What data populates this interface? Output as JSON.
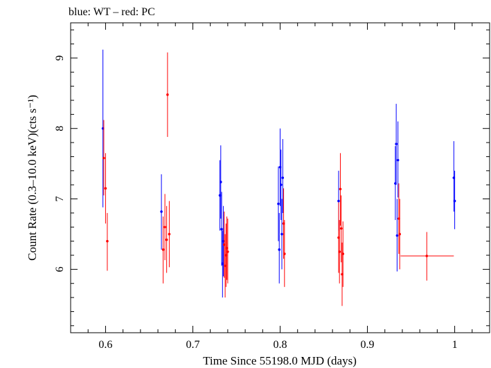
{
  "title": "blue: WT – red: PC",
  "chart_data": {
    "type": "scatter",
    "title": "blue: WT – red: PC",
    "xlabel": "Time Since 55198.0 MJD (days)",
    "ylabel": "Count Rate (0.3–10.0 keV)(cts s⁻¹)",
    "xlim": [
      0.56,
      1.04
    ],
    "ylim": [
      5.1,
      9.5
    ],
    "xticks": [
      0.6,
      0.7,
      0.8,
      0.9,
      1.0
    ],
    "xtick_labels": [
      "0.6",
      "0.7",
      "0.8",
      "0.9",
      "1"
    ],
    "yticks": [
      6,
      7,
      8,
      9
    ],
    "ytick_labels": [
      "6",
      "7",
      "8",
      "9"
    ],
    "grid": false,
    "series": [
      {
        "name": "WT",
        "color": "#0000ff",
        "points": [
          {
            "x": 0.597,
            "y": 8.0,
            "ylo": 6.88,
            "yhi": 9.12
          },
          {
            "x": 0.664,
            "y": 6.82,
            "ylo": 6.28,
            "yhi": 7.35
          },
          {
            "x": 0.731,
            "y": 7.05,
            "ylo": 6.55,
            "yhi": 7.55
          },
          {
            "x": 0.732,
            "y": 7.24,
            "ylo": 6.72,
            "yhi": 7.76
          },
          {
            "x": 0.733,
            "y": 6.57,
            "ylo": 6.05,
            "yhi": 7.1
          },
          {
            "x": 0.734,
            "y": 6.08,
            "ylo": 5.6,
            "yhi": 6.55
          },
          {
            "x": 0.735,
            "y": 6.4,
            "ylo": 5.9,
            "yhi": 6.9
          },
          {
            "x": 0.798,
            "y": 6.93,
            "ylo": 6.4,
            "yhi": 7.46
          },
          {
            "x": 0.799,
            "y": 6.28,
            "ylo": 5.8,
            "yhi": 6.8
          },
          {
            "x": 0.8,
            "y": 7.45,
            "ylo": 6.9,
            "yhi": 8.0
          },
          {
            "x": 0.801,
            "y": 7.2,
            "ylo": 6.7,
            "yhi": 7.7
          },
          {
            "x": 0.802,
            "y": 6.5,
            "ylo": 6.0,
            "yhi": 7.0
          },
          {
            "x": 0.803,
            "y": 7.3,
            "ylo": 6.8,
            "yhi": 7.85
          },
          {
            "x": 0.867,
            "y": 6.97,
            "ylo": 6.55,
            "yhi": 7.4
          },
          {
            "x": 0.932,
            "y": 7.22,
            "ylo": 6.7,
            "yhi": 7.75
          },
          {
            "x": 0.933,
            "y": 7.78,
            "ylo": 7.2,
            "yhi": 8.35
          },
          {
            "x": 0.934,
            "y": 6.48,
            "ylo": 5.97,
            "yhi": 7.0
          },
          {
            "x": 0.935,
            "y": 7.55,
            "ylo": 7.02,
            "yhi": 8.1
          },
          {
            "x": 0.999,
            "y": 7.3,
            "ylo": 6.82,
            "yhi": 7.82
          },
          {
            "x": 1.0,
            "y": 6.97,
            "ylo": 6.57,
            "yhi": 7.4
          }
        ]
      },
      {
        "name": "PC",
        "color": "#ff0000",
        "points": [
          {
            "x": 0.598,
            "y": 7.58,
            "ylo": 7.05,
            "yhi": 8.12
          },
          {
            "x": 0.6,
            "y": 7.15,
            "ylo": 6.65,
            "yhi": 7.65
          },
          {
            "x": 0.602,
            "y": 6.4,
            "ylo": 5.98,
            "yhi": 6.8
          },
          {
            "x": 0.666,
            "y": 6.28,
            "ylo": 5.8,
            "yhi": 6.75
          },
          {
            "x": 0.668,
            "y": 6.6,
            "ylo": 6.13,
            "yhi": 7.07
          },
          {
            "x": 0.67,
            "y": 6.42,
            "ylo": 5.95,
            "yhi": 6.9
          },
          {
            "x": 0.671,
            "y": 8.48,
            "ylo": 7.88,
            "yhi": 9.08
          },
          {
            "x": 0.673,
            "y": 6.5,
            "ylo": 6.03,
            "yhi": 6.97
          },
          {
            "x": 0.736,
            "y": 6.35,
            "ylo": 5.88,
            "yhi": 6.82
          },
          {
            "x": 0.737,
            "y": 6.05,
            "ylo": 5.6,
            "yhi": 6.5
          },
          {
            "x": 0.738,
            "y": 6.2,
            "ylo": 5.75,
            "yhi": 6.65
          },
          {
            "x": 0.739,
            "y": 6.3,
            "ylo": 5.85,
            "yhi": 6.75
          },
          {
            "x": 0.74,
            "y": 6.25,
            "ylo": 5.8,
            "yhi": 6.72
          },
          {
            "x": 0.804,
            "y": 6.65,
            "ylo": 6.15,
            "yhi": 7.15
          },
          {
            "x": 0.805,
            "y": 6.22,
            "ylo": 5.75,
            "yhi": 6.7
          },
          {
            "x": 0.867,
            "y": 6.45,
            "ylo": 5.95,
            "yhi": 6.95
          },
          {
            "x": 0.868,
            "y": 6.25,
            "ylo": 5.8,
            "yhi": 6.7
          },
          {
            "x": 0.869,
            "y": 7.14,
            "ylo": 6.62,
            "yhi": 7.65
          },
          {
            "x": 0.87,
            "y": 6.58,
            "ylo": 6.1,
            "yhi": 7.05
          },
          {
            "x": 0.871,
            "y": 5.93,
            "ylo": 5.48,
            "yhi": 6.38
          },
          {
            "x": 0.872,
            "y": 6.22,
            "ylo": 5.75,
            "yhi": 6.68
          },
          {
            "x": 0.936,
            "y": 6.72,
            "ylo": 6.22,
            "yhi": 7.22
          },
          {
            "x": 0.937,
            "y": 6.5,
            "ylo": 6.0,
            "yhi": 7.0
          },
          {
            "x": 0.968,
            "y": 6.19,
            "ylo": 5.84,
            "yhi": 6.53,
            "xlo": 0.938,
            "xhi": 0.999
          }
        ]
      }
    ]
  }
}
